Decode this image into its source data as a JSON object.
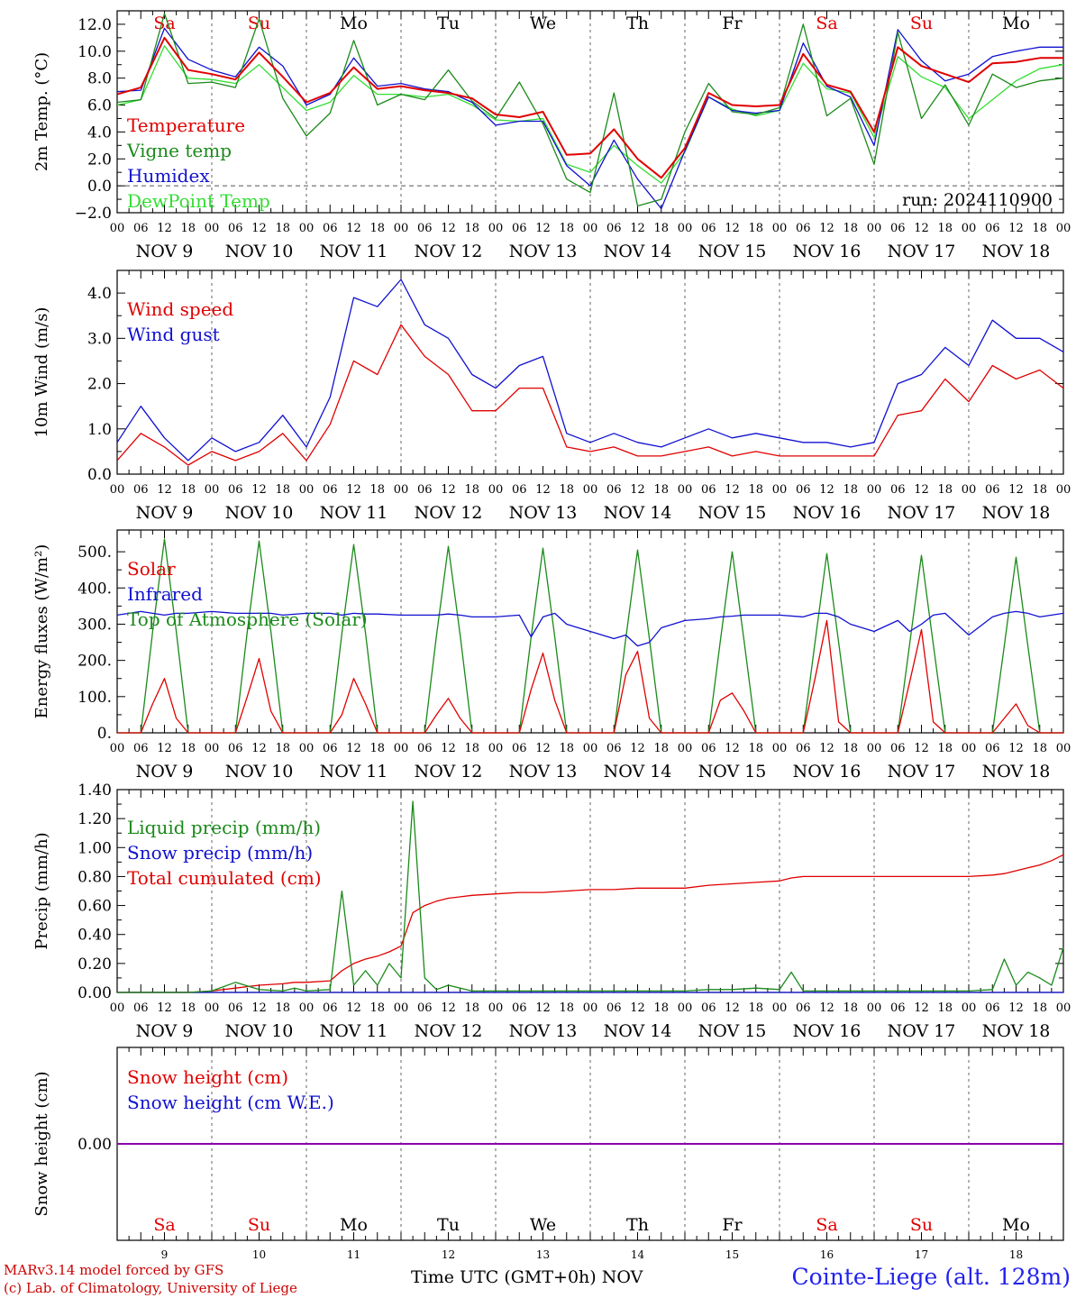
{
  "palette": {
    "red": "#e00000",
    "darkgreen": "#1a8a1a",
    "blue": "#1010d0",
    "lightgreen": "#33dd33",
    "purple": "#8800aa"
  },
  "days": [
    {
      "abbr": "Sa",
      "date": "NOV  9",
      "num": "9",
      "weekend": true
    },
    {
      "abbr": "Su",
      "date": "NOV 10",
      "num": "10",
      "weekend": true
    },
    {
      "abbr": "Mo",
      "date": "NOV 11",
      "num": "11",
      "weekend": false
    },
    {
      "abbr": "Tu",
      "date": "NOV 12",
      "num": "12",
      "weekend": false
    },
    {
      "abbr": "We",
      "date": "NOV 13",
      "num": "13",
      "weekend": false
    },
    {
      "abbr": "Th",
      "date": "NOV 14",
      "num": "14",
      "weekend": false
    },
    {
      "abbr": "Fr",
      "date": "NOV 15",
      "num": "15",
      "weekend": false
    },
    {
      "abbr": "Sa",
      "date": "NOV 16",
      "num": "16",
      "weekend": true
    },
    {
      "abbr": "Su",
      "date": "NOV 17",
      "num": "17",
      "weekend": true
    },
    {
      "abbr": "Mo",
      "date": "NOV 18",
      "num": "18",
      "weekend": false
    }
  ],
  "hour_ticks": [
    "00",
    "06",
    "12",
    "18"
  ],
  "hour_tick_end": "00",
  "footer": {
    "credit_line1": "MARv3.14 model forced by GFS",
    "credit_line2": "(c) Lab. of Climatology, University of Liege",
    "xlabel": "Time UTC (GMT+0h)",
    "month": "NOV",
    "station": "Cointe-Liege (alt. 128m)"
  },
  "chart_data": [
    {
      "id": "temp",
      "type": "line",
      "ylabel": "2m Temp. (°C)",
      "ylim": [
        -2,
        13
      ],
      "yticks": [
        "-2.0",
        "0.0",
        "2.0",
        "4.0",
        "6.0",
        "8.0",
        "10.0",
        "12.0"
      ],
      "zero_line": true,
      "run_label": "run: 2024110900",
      "x_hours": [
        0,
        6,
        12,
        18,
        24,
        30,
        36,
        42,
        48,
        54,
        60,
        66,
        72,
        78,
        84,
        90,
        96,
        102,
        108,
        114,
        120,
        126,
        132,
        138,
        144,
        150,
        156,
        162,
        168,
        174,
        180,
        186,
        192,
        198,
        204,
        210,
        216,
        222,
        228,
        234,
        240
      ],
      "series": [
        {
          "name": "Temperature",
          "color": "red",
          "values": [
            6.8,
            7.3,
            11.0,
            8.6,
            8.3,
            7.9,
            9.9,
            8.1,
            6.2,
            6.9,
            8.8,
            7.2,
            7.4,
            7.1,
            6.9,
            6.5,
            5.3,
            5.1,
            5.5,
            2.3,
            2.4,
            4.2,
            2.0,
            0.6,
            2.8,
            6.9,
            6.0,
            5.9,
            6.0,
            9.8,
            7.5,
            7.0,
            4.0,
            10.3,
            8.9,
            8.3,
            7.7,
            9.1,
            9.2,
            9.5,
            9.5
          ]
        },
        {
          "name": "Vigne temp",
          "color": "darkgreen",
          "values": [
            6.2,
            6.4,
            12.8,
            7.6,
            7.7,
            7.3,
            12.4,
            6.5,
            3.7,
            5.4,
            10.8,
            6.0,
            6.8,
            6.4,
            8.6,
            6.3,
            5.0,
            7.7,
            4.6,
            0.5,
            -0.5,
            6.9,
            -1.5,
            -1.0,
            4.0,
            7.6,
            5.5,
            5.3,
            5.8,
            12.0,
            5.2,
            6.5,
            1.6,
            11.4,
            5.0,
            7.5,
            4.5,
            8.3,
            7.3,
            7.8,
            8.0
          ]
        },
        {
          "name": "Humidex",
          "color": "blue",
          "values": [
            7.0,
            7.1,
            11.7,
            9.4,
            8.6,
            8.1,
            10.3,
            8.9,
            6.0,
            6.8,
            9.5,
            7.4,
            7.6,
            7.2,
            7.0,
            6.2,
            4.5,
            4.8,
            4.8,
            1.5,
            0.0,
            3.4,
            0.5,
            -1.7,
            2.6,
            6.6,
            5.6,
            5.4,
            5.6,
            10.6,
            7.4,
            6.6,
            3.0,
            11.6,
            9.3,
            7.8,
            8.3,
            9.6,
            10.0,
            10.3,
            10.3
          ]
        },
        {
          "name": "DewPoint Temp",
          "color": "lightgreen",
          "values": [
            6.0,
            6.4,
            10.4,
            8.0,
            7.9,
            7.6,
            9.0,
            7.3,
            5.6,
            6.2,
            8.2,
            6.8,
            6.8,
            6.6,
            6.8,
            6.0,
            4.9,
            4.8,
            5.0,
            1.6,
            1.0,
            3.0,
            1.5,
            0.2,
            2.5,
            6.6,
            5.7,
            5.2,
            5.6,
            9.1,
            7.2,
            6.9,
            3.6,
            9.6,
            8.1,
            7.3,
            5.0,
            6.4,
            7.8,
            8.7,
            9.0
          ]
        }
      ]
    },
    {
      "id": "wind",
      "type": "line",
      "ylabel": "10m Wind (m/s)",
      "ylim": [
        0,
        4.5
      ],
      "yticks": [
        "0.0",
        "1.0",
        "2.0",
        "3.0",
        "4.0"
      ],
      "x_hours": [
        0,
        6,
        12,
        18,
        24,
        30,
        36,
        42,
        48,
        54,
        60,
        66,
        72,
        78,
        84,
        90,
        96,
        102,
        108,
        114,
        120,
        126,
        132,
        138,
        144,
        150,
        156,
        162,
        168,
        174,
        180,
        186,
        192,
        198,
        204,
        210,
        216,
        222,
        228,
        234,
        240
      ],
      "series": [
        {
          "name": "Wind speed",
          "color": "red",
          "values": [
            0.3,
            0.9,
            0.6,
            0.2,
            0.5,
            0.3,
            0.5,
            0.9,
            0.3,
            1.1,
            2.5,
            2.2,
            3.3,
            2.6,
            2.2,
            1.4,
            1.4,
            1.9,
            1.9,
            0.6,
            0.5,
            0.6,
            0.4,
            0.4,
            0.5,
            0.6,
            0.4,
            0.5,
            0.4,
            0.4,
            0.4,
            0.4,
            0.4,
            1.3,
            1.4,
            2.1,
            1.6,
            2.4,
            2.1,
            2.3,
            1.9
          ]
        },
        {
          "name": "Wind gust",
          "color": "blue",
          "values": [
            0.7,
            1.5,
            0.8,
            0.3,
            0.8,
            0.5,
            0.7,
            1.3,
            0.6,
            1.7,
            3.9,
            3.7,
            4.3,
            3.3,
            3.0,
            2.2,
            1.9,
            2.4,
            2.6,
            0.9,
            0.7,
            0.9,
            0.7,
            0.6,
            0.8,
            1.0,
            0.8,
            0.9,
            0.8,
            0.7,
            0.7,
            0.6,
            0.7,
            2.0,
            2.2,
            2.8,
            2.4,
            3.4,
            3.0,
            3.0,
            2.7
          ]
        }
      ]
    },
    {
      "id": "flux",
      "type": "line",
      "ylabel": "Energy fluxes (W/m²)",
      "ylim": [
        0,
        560
      ],
      "yticks": [
        "0.",
        "100.",
        "200.",
        "300.",
        "400.",
        "500."
      ],
      "x_hours": [
        0,
        6,
        9,
        12,
        15,
        18,
        24,
        30,
        33,
        36,
        39,
        42,
        48,
        54,
        57,
        60,
        63,
        66,
        72,
        78,
        81,
        84,
        87,
        90,
        96,
        102,
        105,
        108,
        111,
        114,
        120,
        126,
        129,
        132,
        135,
        138,
        144,
        150,
        153,
        156,
        159,
        162,
        168,
        174,
        177,
        180,
        183,
        186,
        192,
        198,
        201,
        204,
        207,
        210,
        216,
        222,
        225,
        228,
        231,
        234,
        240
      ],
      "series": [
        {
          "name": "Solar",
          "color": "red",
          "values": [
            0,
            0,
            80,
            150,
            40,
            0,
            0,
            0,
            100,
            205,
            60,
            0,
            0,
            0,
            50,
            150,
            80,
            0,
            0,
            0,
            50,
            95,
            40,
            0,
            0,
            0,
            120,
            220,
            90,
            0,
            0,
            0,
            160,
            225,
            40,
            0,
            0,
            0,
            90,
            110,
            60,
            0,
            0,
            0,
            150,
            310,
            30,
            0,
            0,
            0,
            140,
            285,
            30,
            0,
            0,
            0,
            40,
            80,
            20,
            0,
            0
          ]
        },
        {
          "name": "Infrared",
          "color": "blue",
          "values": [
            325,
            335,
            330,
            325,
            330,
            330,
            335,
            330,
            330,
            330,
            330,
            325,
            330,
            330,
            325,
            330,
            328,
            328,
            325,
            325,
            325,
            328,
            325,
            320,
            320,
            325,
            265,
            320,
            330,
            300,
            280,
            260,
            270,
            240,
            250,
            290,
            310,
            315,
            320,
            322,
            325,
            325,
            325,
            320,
            330,
            330,
            320,
            300,
            280,
            310,
            280,
            300,
            325,
            330,
            270,
            320,
            330,
            335,
            330,
            320,
            330
          ]
        },
        {
          "name": "Top of Atmosphere (Solar)",
          "color": "darkgreen",
          "values": [
            0,
            0,
            280,
            535,
            280,
            0,
            0,
            0,
            280,
            530,
            280,
            0,
            0,
            0,
            275,
            520,
            275,
            0,
            0,
            0,
            270,
            515,
            270,
            0,
            0,
            0,
            265,
            510,
            265,
            0,
            0,
            0,
            260,
            505,
            260,
            0,
            0,
            0,
            255,
            500,
            255,
            0,
            0,
            0,
            250,
            495,
            250,
            0,
            0,
            0,
            245,
            490,
            245,
            0,
            0,
            0,
            240,
            485,
            240,
            0,
            0
          ]
        }
      ]
    },
    {
      "id": "precip",
      "type": "line",
      "ylabel": "Precip (mm/h)",
      "ylim": [
        0,
        1.4
      ],
      "yticks": [
        "0.00",
        "0.20",
        "0.40",
        "0.60",
        "0.80",
        "1.00",
        "1.20",
        "1.40"
      ],
      "x_hours": [
        0,
        6,
        12,
        18,
        24,
        30,
        36,
        42,
        45,
        48,
        54,
        57,
        60,
        63,
        66,
        69,
        72,
        75,
        78,
        81,
        84,
        90,
        96,
        102,
        108,
        114,
        120,
        126,
        132,
        138,
        144,
        150,
        156,
        162,
        168,
        171,
        174,
        180,
        186,
        192,
        198,
        204,
        210,
        216,
        222,
        225,
        228,
        231,
        234,
        237,
        240
      ],
      "series": [
        {
          "name": "Liquid precip (mm/h)",
          "color": "darkgreen",
          "values": [
            0,
            0,
            0,
            0,
            0.01,
            0.07,
            0.02,
            0.01,
            0.03,
            0.01,
            0.02,
            0.7,
            0.05,
            0.15,
            0.05,
            0.2,
            0.1,
            1.32,
            0.1,
            0.02,
            0.05,
            0.01,
            0.01,
            0.01,
            0.01,
            0.01,
            0.01,
            0.01,
            0.01,
            0.01,
            0.01,
            0.02,
            0.02,
            0.03,
            0.02,
            0.14,
            0.01,
            0.01,
            0.01,
            0.01,
            0.01,
            0.01,
            0.01,
            0.01,
            0.02,
            0.23,
            0.05,
            0.14,
            0.1,
            0.05,
            0.31
          ]
        },
        {
          "name": "Snow precip (mm/h)",
          "color": "blue",
          "values": [
            0,
            0,
            0,
            0,
            0,
            0,
            0,
            0,
            0,
            0,
            0,
            0,
            0,
            0,
            0,
            0,
            0,
            0,
            0,
            0,
            0,
            0,
            0,
            0,
            0,
            0,
            0,
            0,
            0,
            0,
            0,
            0,
            0,
            0,
            0,
            0,
            0,
            0,
            0,
            0,
            0,
            0,
            0,
            0,
            0,
            0,
            0,
            0,
            0,
            0,
            0
          ]
        },
        {
          "name": "Total cumulated (cm)",
          "color": "red",
          "values": [
            0,
            0,
            0,
            0,
            0.01,
            0.03,
            0.05,
            0.06,
            0.07,
            0.07,
            0.08,
            0.15,
            0.2,
            0.23,
            0.25,
            0.28,
            0.32,
            0.55,
            0.6,
            0.63,
            0.65,
            0.67,
            0.68,
            0.69,
            0.69,
            0.7,
            0.71,
            0.71,
            0.72,
            0.72,
            0.72,
            0.74,
            0.75,
            0.76,
            0.77,
            0.79,
            0.8,
            0.8,
            0.8,
            0.8,
            0.8,
            0.8,
            0.8,
            0.8,
            0.81,
            0.82,
            0.84,
            0.86,
            0.88,
            0.91,
            0.95
          ]
        }
      ]
    },
    {
      "id": "snow",
      "type": "line",
      "ylabel": "Snow height (cm)",
      "ylim": [
        -1,
        1
      ],
      "yticks": [
        "0.00"
      ],
      "x_hours": [
        0,
        240
      ],
      "series": [
        {
          "name": "Snow height (cm)",
          "color": "red",
          "values": [
            0,
            0
          ]
        },
        {
          "name": "Snow height (cm W.E.)",
          "color": "blue",
          "values": [
            0,
            0
          ]
        }
      ]
    }
  ]
}
